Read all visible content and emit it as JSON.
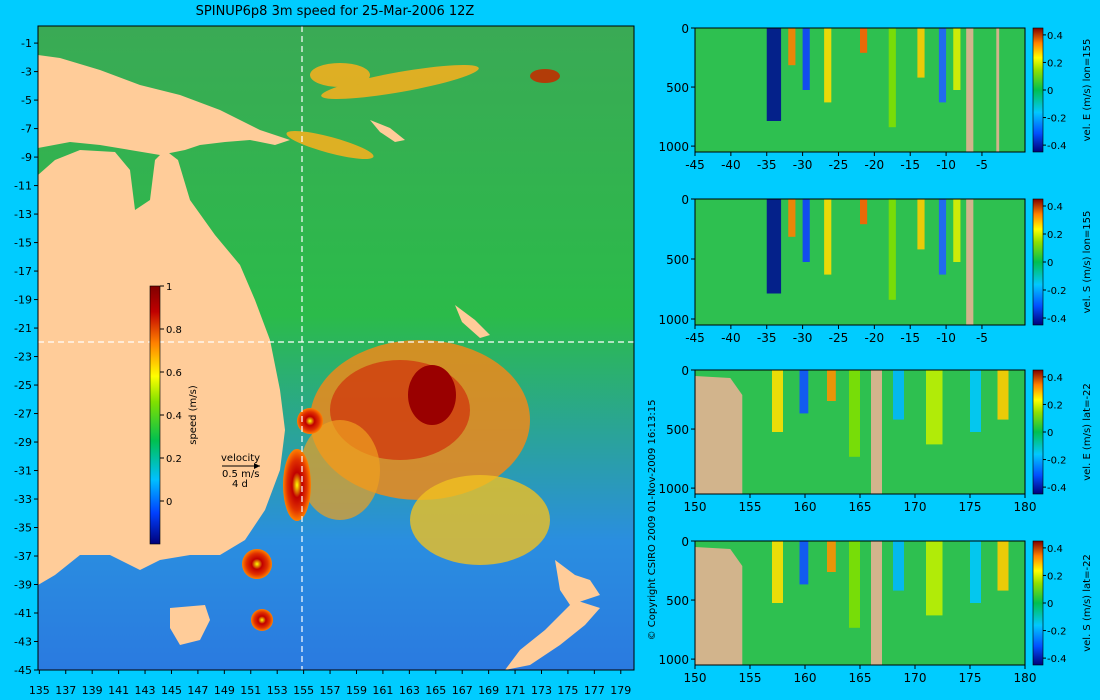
{
  "copyright": "© Copyright CSIRO 2009   01-Nov-2009 16:13:15",
  "chart_data": [
    {
      "type": "heatmap",
      "title": "SPINUP6p8 3m speed for 25-Mar-2006 12Z",
      "x_ticks": [
        135,
        137,
        139,
        141,
        143,
        145,
        147,
        149,
        151,
        153,
        155,
        157,
        159,
        161,
        163,
        165,
        167,
        169,
        171,
        173,
        175,
        177,
        179
      ],
      "y_ticks": [
        -1,
        -3,
        -5,
        -7,
        -9,
        -11,
        -13,
        -15,
        -17,
        -19,
        -21,
        -23,
        -25,
        -27,
        -29,
        -31,
        -33,
        -35,
        -37,
        -39,
        -41,
        -43,
        -45
      ],
      "xlim": [
        134.9,
        180
      ],
      "ylim": [
        -45,
        0.2
      ],
      "section_lines": {
        "lon": 155,
        "lat": -22
      },
      "colorbar": {
        "label": "speed (m/s)",
        "ticks": [
          0,
          0.2,
          0.4,
          0.6,
          0.8,
          1
        ],
        "range": [
          -0.2,
          1
        ]
      },
      "velocity_key": {
        "title": "velocity",
        "speed": "0.5 m/s",
        "duration": "4 d"
      },
      "colors": {
        "land": "#ffcc99",
        "ocean_low": "#1e5fe6",
        "ocean_mid": "#22c04a",
        "ocean_high": "#b00000"
      }
    },
    {
      "type": "heatmap",
      "colorbar": {
        "label": "vel. E (m/s) lon=155",
        "ticks": [
          -0.4,
          -0.2,
          0,
          0.2,
          0.4
        ],
        "range": [
          -0.45,
          0.45
        ]
      },
      "x_ticks": [
        -45,
        -40,
        -35,
        -30,
        -25,
        -20,
        -15,
        -10,
        -5
      ],
      "xlim": [
        -45,
        1
      ],
      "y_ticks": [
        0,
        500,
        1000
      ],
      "ylim": [
        0,
        1050
      ],
      "y_inverted": true
    },
    {
      "type": "heatmap",
      "colorbar": {
        "label": "vel. S (m/s) lon=155",
        "ticks": [
          -0.4,
          -0.2,
          0,
          0.2,
          0.4
        ],
        "range": [
          -0.45,
          0.45
        ]
      },
      "x_ticks": [
        -45,
        -40,
        -35,
        -30,
        -25,
        -20,
        -15,
        -10,
        -5
      ],
      "xlim": [
        -45,
        1
      ],
      "y_ticks": [
        0,
        500,
        1000
      ],
      "ylim": [
        0,
        1050
      ],
      "y_inverted": true
    },
    {
      "type": "heatmap",
      "colorbar": {
        "label": "vel. E (m/s) lat=-22",
        "ticks": [
          -0.4,
          -0.2,
          0,
          0.2,
          0.4
        ],
        "range": [
          -0.45,
          0.45
        ]
      },
      "x_ticks": [
        150,
        155,
        160,
        165,
        170,
        175,
        180
      ],
      "xlim": [
        150,
        180
      ],
      "y_ticks": [
        0,
        500,
        1000
      ],
      "ylim": [
        0,
        1050
      ],
      "y_inverted": true
    },
    {
      "type": "heatmap",
      "colorbar": {
        "label": "vel. S (m/s) lat=-22",
        "ticks": [
          -0.4,
          -0.2,
          0,
          0.2,
          0.4
        ],
        "range": [
          -0.45,
          0.45
        ]
      },
      "x_ticks": [
        150,
        155,
        160,
        165,
        170,
        175,
        180
      ],
      "xlim": [
        150,
        180
      ],
      "y_ticks": [
        0,
        500,
        1000
      ],
      "ylim": [
        0,
        1050
      ],
      "y_inverted": true
    }
  ]
}
